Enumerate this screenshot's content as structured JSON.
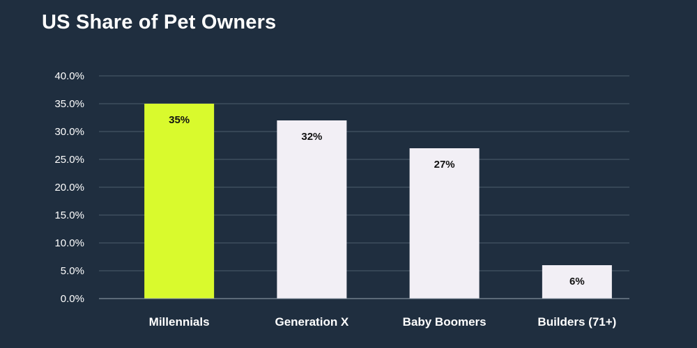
{
  "colors": {
    "background": "#1f2e3f",
    "highlight_bar": "#d9fa2d",
    "default_bar": "#f2eff5",
    "grid": "#4d5d6e",
    "text": "#ffffff",
    "data_label_text": "#111111"
  },
  "chart_data": {
    "type": "bar",
    "title": "US Share of Pet Owners",
    "xlabel": "",
    "ylabel": "",
    "categories": [
      "Millennials",
      "Generation X",
      "Baby Boomers",
      "Builders (71+)"
    ],
    "values": [
      35,
      32,
      27,
      6
    ],
    "data_labels": [
      "35%",
      "32%",
      "27%",
      "6%"
    ],
    "highlighted_category": "Millennials",
    "ylim": [
      0,
      40
    ],
    "yticks": [
      0,
      5,
      10,
      15,
      20,
      25,
      30,
      35,
      40
    ],
    "ytick_labels": [
      "0.0%",
      "5.0%",
      "10.0%",
      "15.0%",
      "20.0%",
      "25.0%",
      "30.0%",
      "35.0%",
      "40.0%"
    ],
    "grid": true,
    "legend": "none"
  }
}
